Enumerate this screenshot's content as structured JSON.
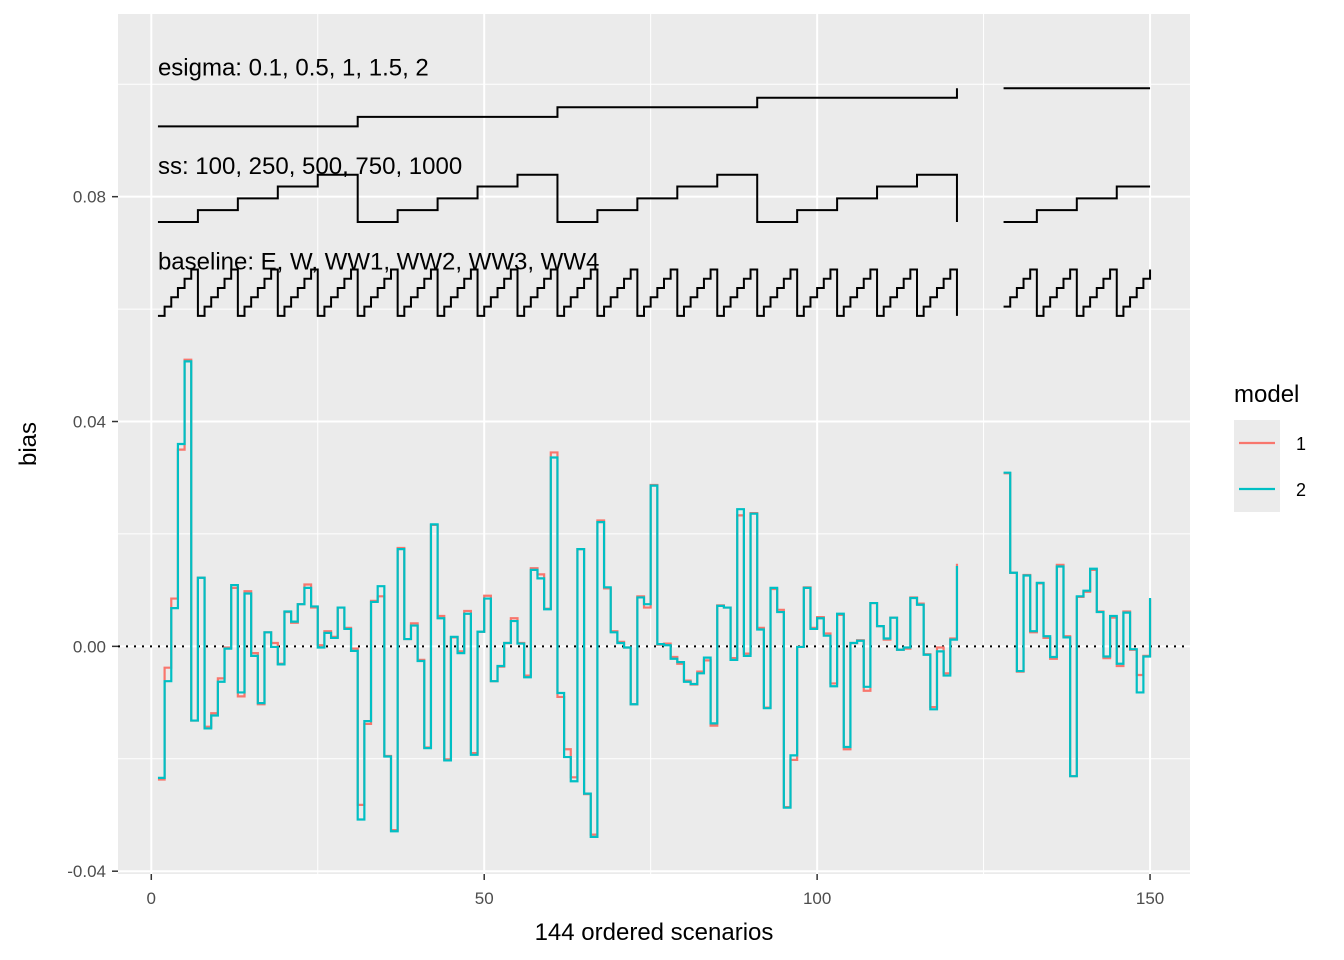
{
  "chart_data": {
    "type": "line",
    "step": true,
    "title": "",
    "xlabel": "144 ordered scenarios",
    "ylabel": "bias",
    "xlim": [
      -5,
      156
    ],
    "ylim": [
      -0.0405,
      0.1125
    ],
    "xticks": [
      {
        "v": 0,
        "label": "0"
      },
      {
        "v": 50,
        "label": "50"
      },
      {
        "v": 100,
        "label": "100"
      },
      {
        "v": 150,
        "label": "150"
      }
    ],
    "yticks": [
      {
        "v": -0.04,
        "label": "-0.04"
      },
      {
        "v": 0,
        "label": "0.00"
      },
      {
        "v": 0.04,
        "label": "0.04"
      },
      {
        "v": 0.08,
        "label": "0.08"
      }
    ],
    "grid": true,
    "reference_line": {
      "y": 0,
      "style": "dotted"
    },
    "legend": {
      "title": "model",
      "position": "right",
      "entries": [
        {
          "label": "1",
          "color": "#F8766D"
        },
        {
          "label": "2",
          "color": "#00BFC4"
        }
      ]
    },
    "x": [
      1,
      2,
      3,
      4,
      5,
      6,
      7,
      8,
      9,
      10,
      11,
      12,
      13,
      14,
      15,
      16,
      17,
      18,
      19,
      20,
      21,
      22,
      23,
      24,
      25,
      26,
      27,
      28,
      29,
      30,
      31,
      32,
      33,
      34,
      35,
      36,
      37,
      38,
      39,
      40,
      41,
      42,
      43,
      44,
      45,
      46,
      47,
      48,
      49,
      50,
      51,
      52,
      53,
      54,
      55,
      56,
      57,
      58,
      59,
      60,
      61,
      62,
      63,
      64,
      65,
      66,
      67,
      68,
      69,
      70,
      71,
      72,
      73,
      74,
      75,
      76,
      77,
      78,
      79,
      80,
      81,
      82,
      83,
      84,
      85,
      86,
      87,
      88,
      89,
      90,
      91,
      92,
      93,
      94,
      95,
      96,
      97,
      98,
      99,
      100,
      101,
      102,
      103,
      104,
      105,
      106,
      107,
      108,
      109,
      110,
      111,
      112,
      113,
      114,
      115,
      116,
      117,
      118,
      119,
      120,
      121,
      128,
      129,
      130,
      131,
      132,
      133,
      134,
      135,
      136,
      137,
      138,
      139,
      140,
      141,
      142,
      143,
      144,
      145,
      146,
      147,
      148,
      149,
      150
    ],
    "series": [
      {
        "name": "1",
        "color": "#F8766D",
        "values": [
          -0.0237,
          -0.0038,
          0.0085,
          0.035,
          0.051,
          -0.0132,
          0.0122,
          -0.0143,
          -0.0119,
          -0.0057,
          -0.0002,
          0.0104,
          -0.0089,
          0.0098,
          -0.0012,
          -0.0103,
          0.0025,
          0.0006,
          -0.0031,
          0.0061,
          0.0042,
          0.0075,
          0.011,
          0.0069,
          0.0002,
          0.0027,
          0.0017,
          0.0069,
          0.0033,
          -0.0004,
          -0.0282,
          -0.0138,
          0.0081,
          0.0089,
          -0.0195,
          -0.0327,
          0.0175,
          0.0013,
          0.0041,
          -0.0024,
          -0.018,
          0.0216,
          0.0054,
          -0.0201,
          0.0016,
          -0.0009,
          0.0063,
          -0.019,
          0.0026,
          0.009,
          -0.0062,
          -0.0036,
          0.0006,
          0.005,
          0.0006,
          -0.0052,
          0.0139,
          0.0128,
          0.0067,
          0.0345,
          -0.009,
          -0.0183,
          -0.0233,
          0.0173,
          -0.0263,
          -0.0335,
          0.0224,
          0.0103,
          0.0027,
          0.0008,
          -0.0002,
          -0.0103,
          0.0089,
          0.0069,
          0.0287,
          0.0003,
          0.0005,
          -0.0019,
          -0.0031,
          -0.0061,
          -0.0068,
          -0.0045,
          -0.0025,
          -0.0141,
          0.0073,
          0.0069,
          -0.0021,
          0.0233,
          -0.0013,
          0.0237,
          0.0033,
          -0.0109,
          0.0102,
          0.0065,
          -0.0286,
          -0.0202,
          -0.0001,
          0.0105,
          0.0033,
          0.0052,
          0.0023,
          -0.0066,
          0.0056,
          -0.0183,
          0.0006,
          0.0011,
          -0.0079,
          0.0077,
          0.0036,
          0.0012,
          0.0051,
          -0.0006,
          -0.0004,
          0.0087,
          0.0076,
          -0.0014,
          -0.0108,
          -0.0002,
          -0.0048,
          0.0014,
          0.0147,
          0.0308,
          0.0131,
          -0.0045,
          0.0127,
          0.0025,
          0.0112,
          0.0015,
          -0.0022,
          0.0145,
          0.0018,
          -0.0231,
          0.0088,
          0.0097,
          0.0136,
          0.0062,
          -0.0021,
          0.0051,
          -0.0035,
          0.0062,
          -0.0006,
          -0.0051,
          -0.0017,
          0.0084
        ]
      },
      {
        "name": "2",
        "color": "#00BFC4",
        "values": [
          -0.0234,
          -0.0062,
          0.0068,
          0.036,
          0.0507,
          -0.0132,
          0.0122,
          -0.0146,
          -0.0123,
          -0.0063,
          -0.0004,
          0.0109,
          -0.0082,
          0.0094,
          -0.0017,
          -0.0101,
          0.0025,
          -0.0001,
          -0.0032,
          0.0062,
          0.0044,
          0.0075,
          0.0104,
          0.0071,
          -0.0002,
          0.0024,
          0.0015,
          0.0069,
          0.0031,
          -0.0008,
          -0.0308,
          -0.0133,
          0.0079,
          0.0107,
          -0.0196,
          -0.0329,
          0.0173,
          0.0013,
          0.0037,
          -0.0026,
          -0.0181,
          0.0217,
          0.005,
          -0.0203,
          0.0017,
          -0.0012,
          0.0058,
          -0.0193,
          0.0026,
          0.0085,
          -0.0062,
          -0.0035,
          0.0006,
          0.0045,
          0.0005,
          -0.0055,
          0.0136,
          0.0121,
          0.0066,
          0.0336,
          -0.0083,
          -0.0197,
          -0.024,
          0.0173,
          -0.0262,
          -0.0339,
          0.0221,
          0.0105,
          0.0025,
          0.0006,
          -0.0002,
          -0.0103,
          0.0087,
          0.0075,
          0.0286,
          0.0004,
          0.0002,
          -0.0022,
          -0.0028,
          -0.0063,
          -0.0067,
          -0.0048,
          -0.002,
          -0.0137,
          0.0072,
          0.0069,
          -0.0024,
          0.0244,
          -0.0017,
          0.0236,
          0.003,
          -0.011,
          0.0104,
          0.0061,
          -0.0287,
          -0.0194,
          -0.0001,
          0.0104,
          0.0031,
          0.005,
          0.0019,
          -0.0071,
          0.0058,
          -0.0179,
          0.0006,
          0.001,
          -0.0072,
          0.0077,
          0.0036,
          0.0014,
          0.0051,
          -0.0006,
          -0.0002,
          0.0086,
          0.0074,
          -0.0015,
          -0.0112,
          -0.0009,
          -0.0052,
          0.0012,
          0.0143,
          0.0309,
          0.0131,
          -0.0044,
          0.0126,
          0.0027,
          0.0113,
          0.0018,
          -0.0019,
          0.0142,
          0.0016,
          -0.0231,
          0.0089,
          0.0099,
          0.0138,
          0.0061,
          -0.0018,
          0.0054,
          -0.0031,
          0.006,
          -0.0005,
          -0.0082,
          -0.0018,
          0.0086
        ]
      }
    ],
    "annotations": [
      {
        "text": "esigma: 0.1, 0.5, 1, 1.5, 2",
        "levels": [
          "0.1",
          "0.5",
          "1",
          "1.5",
          "2"
        ]
      },
      {
        "text": "ss: 100, 250, 500, 750, 1000",
        "levels": [
          "100",
          "250",
          "500",
          "750",
          "1000"
        ]
      },
      {
        "text": "baseline: E, W, WW1, WW2, WW3, WW4",
        "levels": [
          "E",
          "W",
          "WW1",
          "WW2",
          "WW3",
          "WW4"
        ]
      }
    ]
  }
}
